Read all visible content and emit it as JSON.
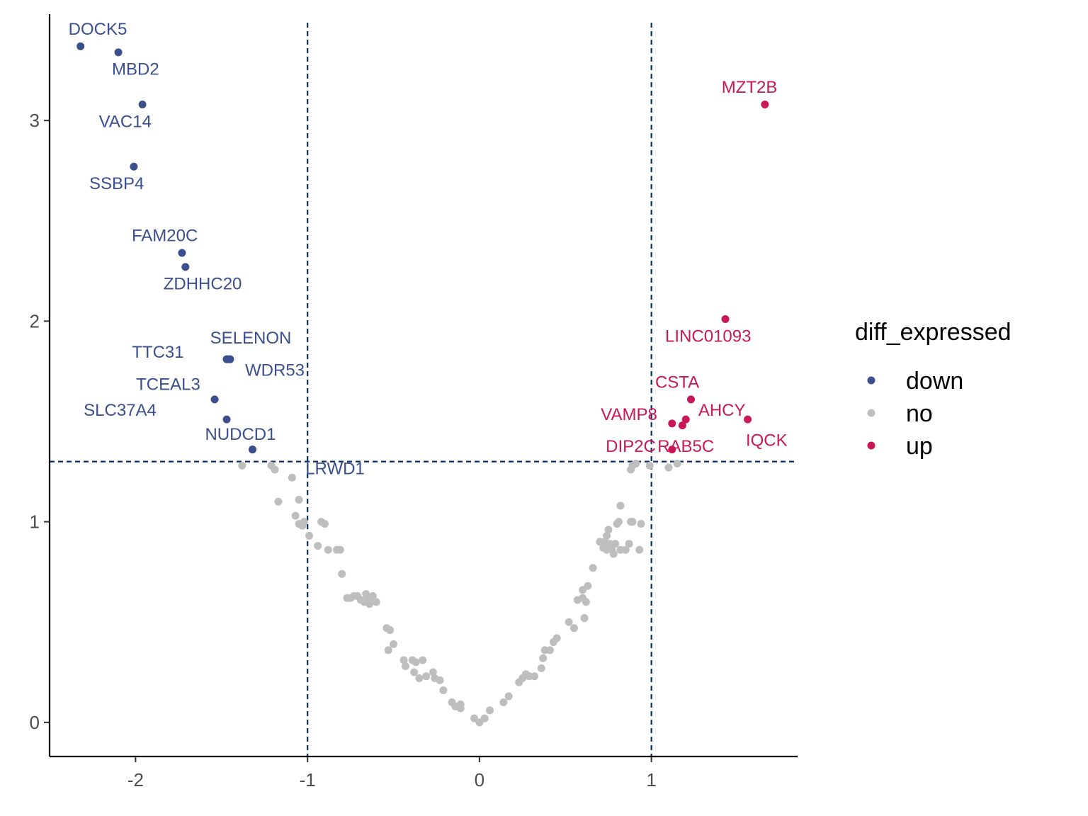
{
  "chart_data": {
    "type": "scatter",
    "title": "",
    "xlabel": "",
    "ylabel": "",
    "xlim": [
      -2.5,
      1.85
    ],
    "ylim": [
      -0.17,
      3.53
    ],
    "x_ticks": [
      -2,
      -1,
      0,
      1
    ],
    "x_tick_labels": [
      "-2",
      "-1",
      "0",
      "1"
    ],
    "y_ticks": [
      0,
      1,
      2,
      3
    ],
    "y_tick_labels": [
      "0",
      "1",
      "2",
      "3"
    ],
    "grid": false,
    "thresholds": {
      "vertical": [
        -1,
        1
      ],
      "horizontal": [
        1.3
      ]
    },
    "threshold_color": "#08306b",
    "legend": {
      "title": "diff_expressed",
      "placement": "right",
      "entries": [
        {
          "name": "down",
          "color": "#3b4f8f"
        },
        {
          "name": "no",
          "color": "#bebebe"
        },
        {
          "name": "up",
          "color": "#c8185a"
        }
      ]
    },
    "series": [
      {
        "name": "down",
        "color": "#3b4f8f",
        "points": [
          {
            "label": "DOCK5",
            "x": -2.32,
            "y": 3.37,
            "label_dx": 0.1,
            "label_dy": 0.08
          },
          {
            "label": "MBD2",
            "x": -2.1,
            "y": 3.34,
            "label_dx": 0.1,
            "label_dy": -0.09
          },
          {
            "label": "VAC14",
            "x": -1.96,
            "y": 3.08,
            "label_dx": -0.1,
            "label_dy": -0.09
          },
          {
            "label": "SSBP4",
            "x": -2.01,
            "y": 2.77,
            "label_dx": -0.1,
            "label_dy": -0.09
          },
          {
            "label": "FAM20C",
            "x": -1.73,
            "y": 2.34,
            "label_dx": -0.1,
            "label_dy": 0.08
          },
          {
            "label": "ZDHHC20",
            "x": -1.71,
            "y": 2.27,
            "label_dx": 0.1,
            "label_dy": -0.09
          },
          {
            "label": "SELENON",
            "x": -1.45,
            "y": 1.81,
            "label_dx": 0.12,
            "label_dy": 0.1
          },
          {
            "label": "TTC31",
            "x": -1.47,
            "y": 1.81,
            "label_dx": -0.4,
            "label_dy": 0.03
          },
          {
            "label": "WDR53",
            "x": -1.46,
            "y": 1.81,
            "label_dx": 0.27,
            "label_dy": -0.06
          },
          {
            "label": "TCEAL3",
            "x": -1.54,
            "y": 1.61,
            "label_dx": -0.27,
            "label_dy": 0.07
          },
          {
            "label": "SLC37A4",
            "x": -1.47,
            "y": 1.51,
            "label_dx": -0.62,
            "label_dy": 0.04
          },
          {
            "label": "NUDCD1",
            "x": -1.32,
            "y": 1.36,
            "label_dx": -0.07,
            "label_dy": 0.07
          },
          {
            "label": "LRWD1",
            "x": -1.32,
            "y": 1.36,
            "label_dx": 0.48,
            "label_dy": -0.1
          }
        ]
      },
      {
        "name": "no",
        "color": "#bebebe",
        "points": [
          {
            "x": -1.38,
            "y": 1.28
          },
          {
            "x": -1.21,
            "y": 1.28
          },
          {
            "x": -1.19,
            "y": 1.26
          },
          {
            "x": -1.09,
            "y": 1.22
          },
          {
            "x": -1.17,
            "y": 1.1
          },
          {
            "x": -1.05,
            "y": 1.11
          },
          {
            "x": -1.07,
            "y": 1.03
          },
          {
            "x": -1.02,
            "y": 1.0
          },
          {
            "x": -1.03,
            "y": 0.98
          },
          {
            "x": -1.05,
            "y": 0.99
          },
          {
            "x": -0.92,
            "y": 1.0
          },
          {
            "x": -0.9,
            "y": 0.99
          },
          {
            "x": -0.99,
            "y": 0.93
          },
          {
            "x": -0.94,
            "y": 0.88
          },
          {
            "x": -0.88,
            "y": 0.86
          },
          {
            "x": -0.83,
            "y": 0.86
          },
          {
            "x": -0.81,
            "y": 0.86
          },
          {
            "x": -0.8,
            "y": 0.74
          },
          {
            "x": -0.75,
            "y": 0.62
          },
          {
            "x": -0.73,
            "y": 0.63
          },
          {
            "x": -0.71,
            "y": 0.63
          },
          {
            "x": -0.69,
            "y": 0.61
          },
          {
            "x": -0.67,
            "y": 0.6
          },
          {
            "x": -0.65,
            "y": 0.62
          },
          {
            "x": -0.63,
            "y": 0.61
          },
          {
            "x": -0.6,
            "y": 0.6
          },
          {
            "x": -0.64,
            "y": 0.59
          },
          {
            "x": -0.54,
            "y": 0.47
          },
          {
            "x": -0.52,
            "y": 0.46
          },
          {
            "x": -0.5,
            "y": 0.39
          },
          {
            "x": -0.53,
            "y": 0.36
          },
          {
            "x": -0.44,
            "y": 0.31
          },
          {
            "x": -0.39,
            "y": 0.31
          },
          {
            "x": -0.37,
            "y": 0.3
          },
          {
            "x": -0.33,
            "y": 0.31
          },
          {
            "x": -0.43,
            "y": 0.28
          },
          {
            "x": -0.38,
            "y": 0.25
          },
          {
            "x": -0.35,
            "y": 0.22
          },
          {
            "x": -0.31,
            "y": 0.23
          },
          {
            "x": -0.27,
            "y": 0.25
          },
          {
            "x": -0.26,
            "y": 0.22
          },
          {
            "x": -0.23,
            "y": 0.21
          },
          {
            "x": -0.21,
            "y": 0.16
          },
          {
            "x": -0.16,
            "y": 0.1
          },
          {
            "x": -0.14,
            "y": 0.08
          },
          {
            "x": -0.11,
            "y": 0.09
          },
          {
            "x": -0.11,
            "y": 0.07
          },
          {
            "x": -0.03,
            "y": 0.02
          },
          {
            "x": 0.0,
            "y": 0.0
          },
          {
            "x": 0.03,
            "y": 0.02
          },
          {
            "x": 0.06,
            "y": 0.06
          },
          {
            "x": 0.14,
            "y": 0.1
          },
          {
            "x": 0.17,
            "y": 0.13
          },
          {
            "x": 0.23,
            "y": 0.2
          },
          {
            "x": 0.25,
            "y": 0.22
          },
          {
            "x": 0.27,
            "y": 0.24
          },
          {
            "x": 0.29,
            "y": 0.23
          },
          {
            "x": 0.32,
            "y": 0.23
          },
          {
            "x": 0.36,
            "y": 0.27
          },
          {
            "x": 0.37,
            "y": 0.32
          },
          {
            "x": 0.38,
            "y": 0.36
          },
          {
            "x": 0.41,
            "y": 0.36
          },
          {
            "x": 0.43,
            "y": 0.4
          },
          {
            "x": 0.45,
            "y": 0.42
          },
          {
            "x": 0.52,
            "y": 0.5
          },
          {
            "x": 0.55,
            "y": 0.47
          },
          {
            "x": 0.57,
            "y": 0.61
          },
          {
            "x": 0.6,
            "y": 0.62
          },
          {
            "x": 0.6,
            "y": 0.66
          },
          {
            "x": 0.62,
            "y": 0.6
          },
          {
            "x": 0.63,
            "y": 0.68
          },
          {
            "x": 0.61,
            "y": 0.52
          },
          {
            "x": 0.66,
            "y": 0.77
          },
          {
            "x": 0.72,
            "y": 0.87
          },
          {
            "x": 0.73,
            "y": 0.9
          },
          {
            "x": 0.74,
            "y": 0.93
          },
          {
            "x": 0.75,
            "y": 0.96
          },
          {
            "x": 0.76,
            "y": 0.89
          },
          {
            "x": 0.77,
            "y": 0.86
          },
          {
            "x": 0.78,
            "y": 0.84
          },
          {
            "x": 0.8,
            "y": 0.99
          },
          {
            "x": 0.81,
            "y": 1.0
          },
          {
            "x": 0.82,
            "y": 1.08
          },
          {
            "x": 0.82,
            "y": 0.86
          },
          {
            "x": 0.85,
            "y": 0.86
          },
          {
            "x": 0.87,
            "y": 0.89
          },
          {
            "x": 0.88,
            "y": 1.0
          },
          {
            "x": 0.89,
            "y": 1.0
          },
          {
            "x": 0.93,
            "y": 0.86
          },
          {
            "x": 0.94,
            "y": 0.99
          },
          {
            "x": 0.88,
            "y": 1.26
          },
          {
            "x": 0.89,
            "y": 1.28
          },
          {
            "x": 0.91,
            "y": 1.29
          },
          {
            "x": 0.99,
            "y": 1.28
          },
          {
            "x": 1.1,
            "y": 1.27
          },
          {
            "x": 1.15,
            "y": 1.29
          },
          {
            "x": -0.77,
            "y": 0.62
          },
          {
            "x": -0.66,
            "y": 0.64
          },
          {
            "x": -0.62,
            "y": 0.63
          },
          {
            "x": 0.7,
            "y": 0.9
          },
          {
            "x": 0.74,
            "y": 0.86
          },
          {
            "x": 0.79,
            "y": 0.89
          }
        ]
      },
      {
        "name": "up",
        "color": "#c8185a",
        "points": [
          {
            "label": "MZT2B",
            "x": 1.66,
            "y": 3.08,
            "label_dx": -0.09,
            "label_dy": 0.08
          },
          {
            "label": "LINC01093",
            "x": 1.43,
            "y": 2.01,
            "label_dx": -0.1,
            "label_dy": -0.09
          },
          {
            "label": "CSTA",
            "x": 1.23,
            "y": 1.61,
            "label_dx": -0.08,
            "label_dy": 0.08
          },
          {
            "label": "VAMP8",
            "x": 1.12,
            "y": 1.49,
            "label_dx": -0.25,
            "label_dy": 0.04
          },
          {
            "label": "AHCY",
            "x": 1.2,
            "y": 1.51,
            "label_dx": 0.21,
            "label_dy": 0.04
          },
          {
            "label": "RAB5C",
            "x": 1.18,
            "y": 1.48,
            "label_dx": 0.02,
            "label_dy": -0.11
          },
          {
            "label": "IQCK",
            "x": 1.56,
            "y": 1.51,
            "label_dx": 0.11,
            "label_dy": -0.11
          },
          {
            "label": "DIP2C",
            "x": 1.12,
            "y": 1.36,
            "label_dx": -0.24,
            "label_dy": 0.01
          }
        ]
      }
    ]
  }
}
